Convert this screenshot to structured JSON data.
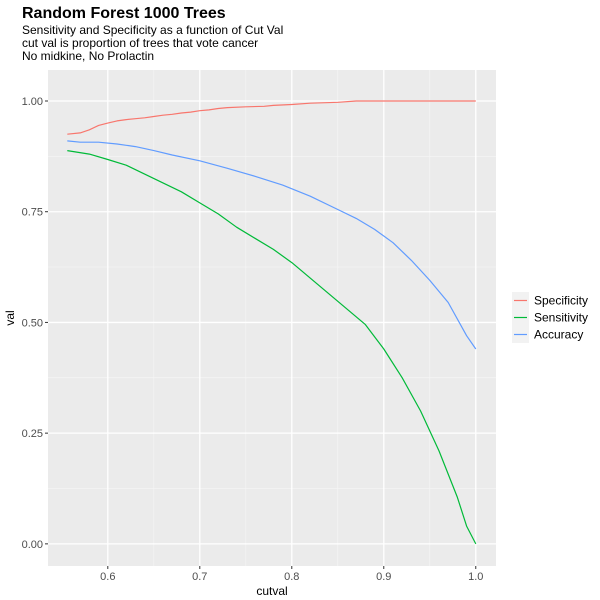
{
  "chart_data": {
    "type": "line",
    "title": "Random Forest 1000 Trees",
    "subtitle_lines": [
      "Sensitivity and Specificity as a function of Cut Val",
      "cut val is proportion of trees that vote cancer",
      "No midkine, No Prolactin"
    ],
    "xlabel": "cutval",
    "ylabel": "val",
    "xlim": [
      0.535,
      1.022
    ],
    "ylim": [
      -0.05,
      1.07
    ],
    "x_ticks": [
      0.6,
      0.7,
      0.8,
      0.9,
      1.0
    ],
    "x_tick_labels": [
      "0.6",
      "0.7",
      "0.8",
      "0.9",
      "1.0"
    ],
    "y_ticks": [
      0.0,
      0.25,
      0.5,
      0.75,
      1.0
    ],
    "y_tick_labels": [
      "0.00",
      "0.25",
      "0.50",
      "0.75",
      "1.00"
    ],
    "grid": true,
    "legend_position": "right",
    "series": [
      {
        "name": "Specificity",
        "color": "#F8766D",
        "x": [
          0.556,
          0.57,
          0.58,
          0.59,
          0.6,
          0.61,
          0.62,
          0.63,
          0.64,
          0.65,
          0.66,
          0.67,
          0.68,
          0.69,
          0.7,
          0.71,
          0.72,
          0.73,
          0.75,
          0.77,
          0.78,
          0.8,
          0.82,
          0.85,
          0.87,
          0.9,
          0.95,
          1.0
        ],
        "values": [
          0.925,
          0.928,
          0.935,
          0.945,
          0.95,
          0.955,
          0.958,
          0.96,
          0.962,
          0.965,
          0.968,
          0.97,
          0.973,
          0.975,
          0.978,
          0.98,
          0.983,
          0.985,
          0.987,
          0.988,
          0.99,
          0.992,
          0.995,
          0.997,
          1.0,
          1.0,
          1.0,
          1.0
        ]
      },
      {
        "name": "Sensitivity",
        "color": "#00BA38",
        "x": [
          0.556,
          0.58,
          0.6,
          0.62,
          0.64,
          0.66,
          0.68,
          0.7,
          0.72,
          0.74,
          0.76,
          0.78,
          0.8,
          0.82,
          0.84,
          0.86,
          0.88,
          0.9,
          0.92,
          0.94,
          0.96,
          0.98,
          0.99,
          1.0
        ],
        "values": [
          0.888,
          0.88,
          0.868,
          0.855,
          0.835,
          0.815,
          0.795,
          0.77,
          0.745,
          0.715,
          0.69,
          0.665,
          0.635,
          0.6,
          0.565,
          0.53,
          0.495,
          0.44,
          0.375,
          0.3,
          0.21,
          0.105,
          0.04,
          0.0
        ]
      },
      {
        "name": "Accuracy",
        "color": "#619CFF",
        "x": [
          0.556,
          0.57,
          0.59,
          0.61,
          0.63,
          0.65,
          0.67,
          0.7,
          0.73,
          0.76,
          0.79,
          0.82,
          0.85,
          0.87,
          0.89,
          0.91,
          0.93,
          0.95,
          0.97,
          0.99,
          1.0
        ],
        "values": [
          0.91,
          0.907,
          0.907,
          0.903,
          0.897,
          0.888,
          0.878,
          0.865,
          0.848,
          0.83,
          0.81,
          0.785,
          0.755,
          0.735,
          0.71,
          0.68,
          0.64,
          0.595,
          0.545,
          0.47,
          0.44
        ]
      }
    ]
  }
}
